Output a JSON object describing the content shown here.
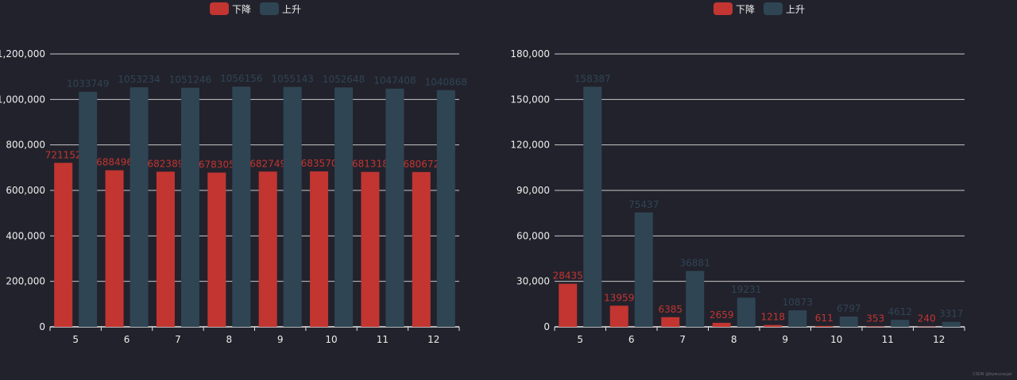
{
  "colors": {
    "background": "#22222c",
    "down": "#c23531",
    "up": "#2f4554",
    "axis": "#e6e6e6",
    "text": "#eeeeee"
  },
  "watermark": "CSDN @bywucaujar",
  "chart_data": [
    {
      "type": "bar",
      "legend": [
        "下降",
        "上升"
      ],
      "categories": [
        "5",
        "6",
        "7",
        "8",
        "9",
        "10",
        "11",
        "12"
      ],
      "series": [
        {
          "name": "下降",
          "values": [
            721152,
            688496,
            682389,
            678305,
            682749,
            683570,
            681318,
            680672
          ]
        },
        {
          "name": "上升",
          "values": [
            1033749,
            1053234,
            1051246,
            1056156,
            1055143,
            1052648,
            1047408,
            1040868
          ]
        }
      ],
      "ylim": [
        0,
        1200000
      ],
      "yticks": [
        0,
        200000,
        400000,
        600000,
        800000,
        1000000,
        1200000
      ],
      "ytick_labels": [
        "0",
        "200,000",
        "400,000",
        "600,000",
        "800,000",
        "1,000,000",
        "1,200,000"
      ]
    },
    {
      "type": "bar",
      "legend": [
        "下降",
        "上升"
      ],
      "categories": [
        "5",
        "6",
        "7",
        "8",
        "9",
        "10",
        "11",
        "12"
      ],
      "series": [
        {
          "name": "下降",
          "values": [
            28435,
            13959,
            6385,
            2659,
            1218,
            611,
            353,
            240
          ]
        },
        {
          "name": "上升",
          "values": [
            158387,
            75437,
            36881,
            19231,
            10873,
            6797,
            4612,
            3317
          ]
        }
      ],
      "ylim": [
        0,
        180000
      ],
      "yticks": [
        0,
        30000,
        60000,
        90000,
        120000,
        150000,
        180000
      ],
      "ytick_labels": [
        "0",
        "30,000",
        "60,000",
        "90,000",
        "120,000",
        "150,000",
        "180,000"
      ]
    }
  ]
}
